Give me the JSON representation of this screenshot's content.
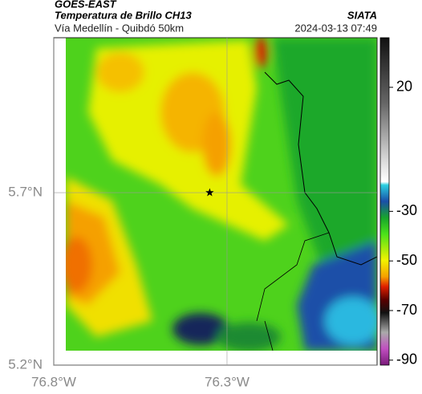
{
  "header": {
    "title": "GOES-EAST",
    "subtitle": "Temperatura de Brillo CH13",
    "source": "SIATA",
    "region": "Vía Medellín - Quibdó 50km",
    "timestamp": "2024-03-13 07:49"
  },
  "map": {
    "xlim": [
      -76.8,
      -75.867
    ],
    "ylim": [
      5.2,
      6.149
    ],
    "xticks": [
      {
        "value": -76.8,
        "label": "76.8°W"
      },
      {
        "value": -76.3,
        "label": "76.3°W"
      }
    ],
    "yticks": [
      {
        "value": 5.2,
        "label": "5.2°N"
      },
      {
        "value": 5.7,
        "label": "5.7°N"
      }
    ],
    "grid": true,
    "marker": {
      "lon": -76.35,
      "lat": 5.7
    }
  },
  "colorbar": {
    "lim": [
      -92,
      40
    ],
    "ticks": [
      20,
      -30,
      -50,
      -70,
      -90
    ]
  }
}
